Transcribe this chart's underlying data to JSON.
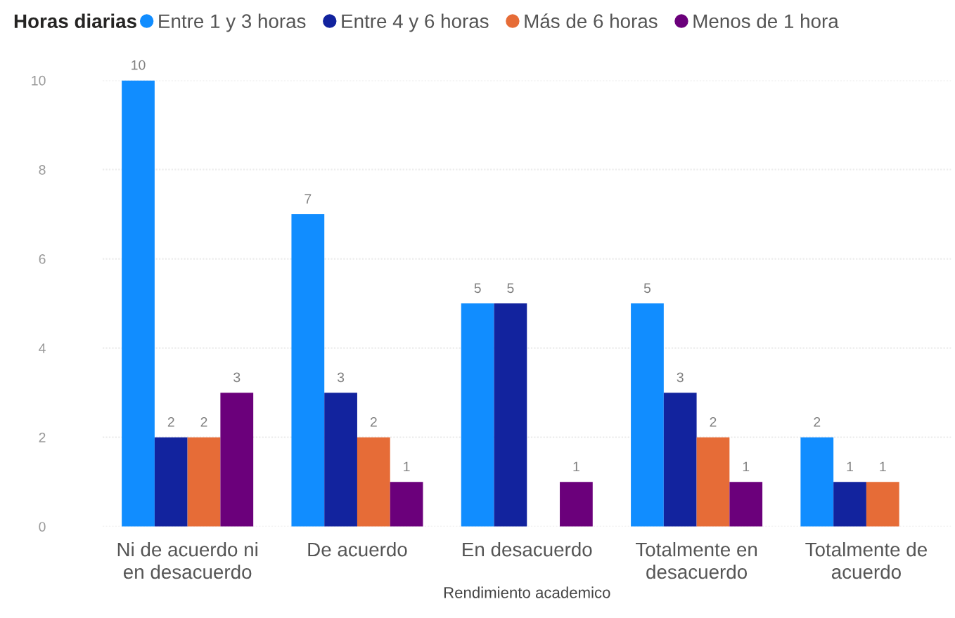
{
  "chart_data": {
    "type": "bar",
    "xlabel": "Rendimiento academico",
    "legend_title": "Horas diarias",
    "categories": [
      "Ni de acuerdo ni en desacuerdo",
      "De acuerdo",
      "En desacuerdo",
      "Totalmente en desacuerdo",
      "Totalmente de acuerdo"
    ],
    "series": [
      {
        "name": "Entre 1 y 3 horas",
        "color": "#118dff",
        "values": [
          10,
          7,
          5,
          5,
          2
        ]
      },
      {
        "name": "Entre 4 y 6 horas",
        "color": "#12239e",
        "values": [
          2,
          3,
          5,
          3,
          1
        ]
      },
      {
        "name": "Más de 6 horas",
        "color": "#e66c37",
        "values": [
          2,
          2,
          null,
          2,
          1
        ]
      },
      {
        "name": "Menos de 1 hora",
        "color": "#6b007b",
        "values": [
          3,
          1,
          1,
          1,
          null
        ]
      }
    ],
    "ylim": [
      0,
      10
    ],
    "yticks": [
      0,
      2,
      4,
      6,
      8,
      10
    ],
    "grid": "y",
    "legend": "top left",
    "data_labels": true
  }
}
